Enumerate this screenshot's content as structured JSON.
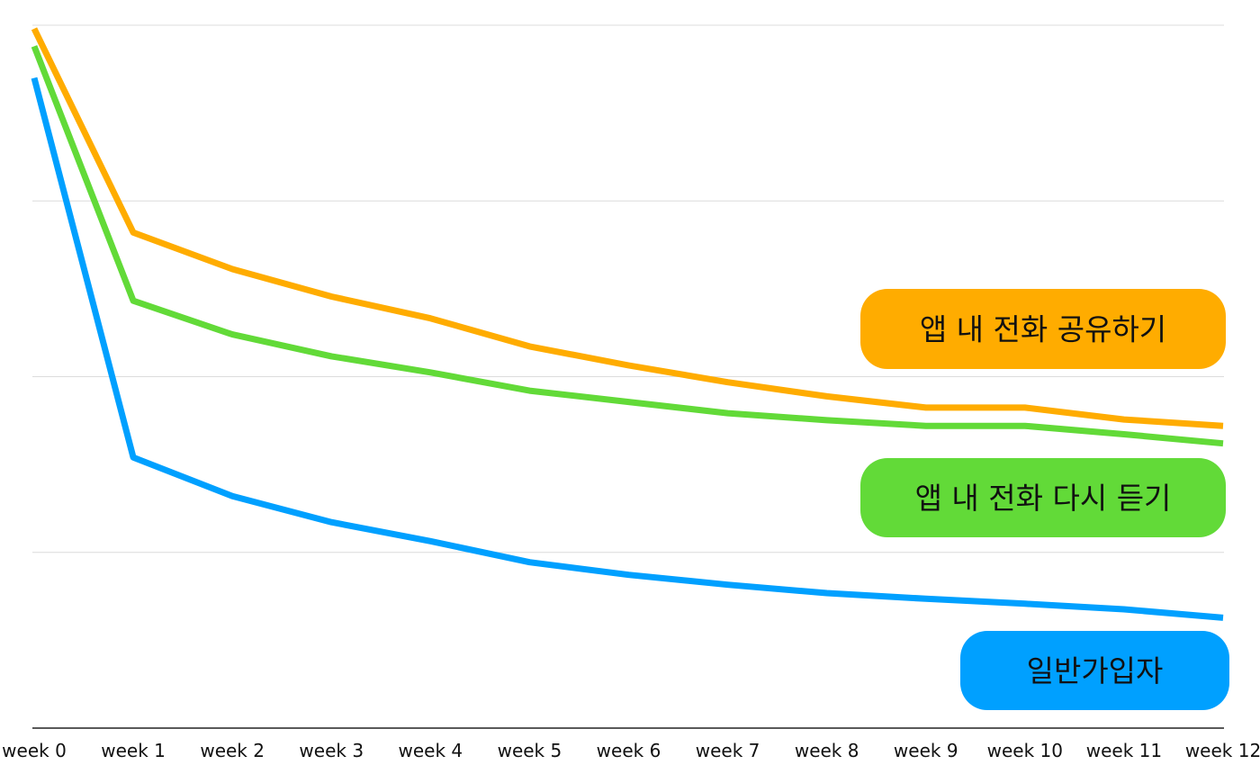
{
  "chart_data": {
    "type": "line",
    "title": "",
    "xlabel": "",
    "ylabel": "",
    "categories": [
      "week 0",
      "week 1",
      "week 2",
      "week 3",
      "week 4",
      "week 5",
      "week 6",
      "week 7",
      "week 8",
      "week 9",
      "week 10",
      "week 11",
      "week 12"
    ],
    "ylim": [
      0,
      100
    ],
    "y_gridlines": [
      25,
      50,
      75,
      100
    ],
    "y_tick_labels_shown": false,
    "grid": true,
    "legend": "inline-right",
    "series": [
      {
        "name": "앱 내 전화 공유하기",
        "color": "#FFAC00",
        "values": [
          99.5,
          70.5,
          65.3,
          61.4,
          58.3,
          54.3,
          51.6,
          49.2,
          47.2,
          45.6,
          45.6,
          43.9,
          43.0
        ]
      },
      {
        "name": "앱 내 전화 다시 듣기",
        "color": "#62DA38",
        "values": [
          97.0,
          60.8,
          56.0,
          52.9,
          50.6,
          48.0,
          46.4,
          44.8,
          43.8,
          43.0,
          43.0,
          41.8,
          40.5
        ]
      },
      {
        "name": "일반가입자",
        "color": "#00A0FF",
        "values": [
          92.5,
          38.5,
          33.0,
          29.3,
          26.6,
          23.6,
          21.8,
          20.4,
          19.2,
          18.4,
          17.7,
          16.9,
          15.7
        ]
      }
    ]
  }
}
